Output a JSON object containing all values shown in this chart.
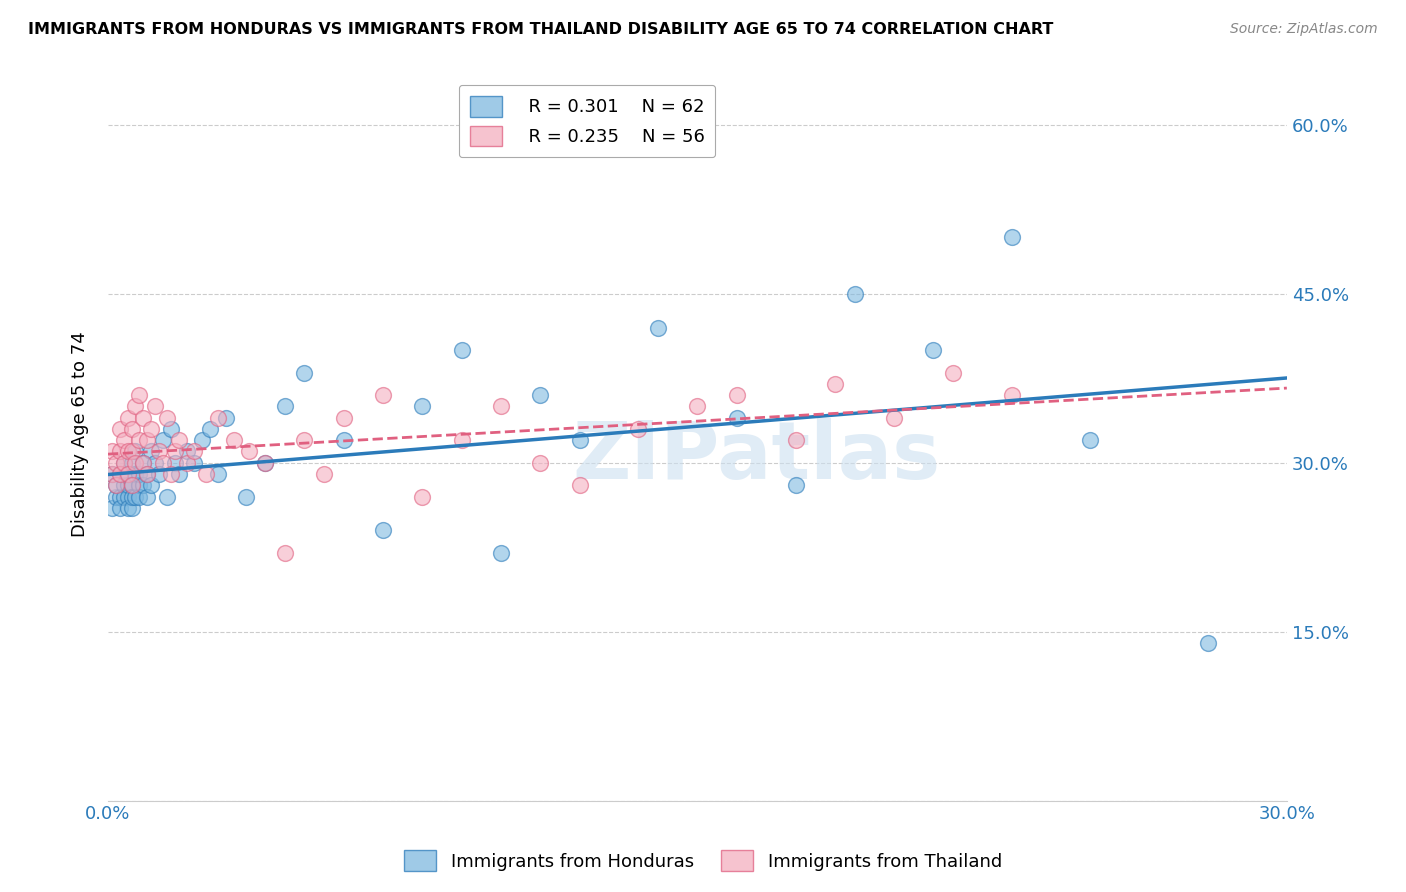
{
  "title": "IMMIGRANTS FROM HONDURAS VS IMMIGRANTS FROM THAILAND DISABILITY AGE 65 TO 74 CORRELATION CHART",
  "source": "Source: ZipAtlas.com",
  "ylabel": "Disability Age 65 to 74",
  "xlim": [
    0.0,
    0.3
  ],
  "ylim": [
    0.0,
    0.65
  ],
  "xticks": [
    0.0,
    0.05,
    0.1,
    0.15,
    0.2,
    0.25,
    0.3
  ],
  "xticklabels": [
    "0.0%",
    "",
    "",
    "",
    "",
    "",
    "30.0%"
  ],
  "yticks": [
    0.0,
    0.15,
    0.3,
    0.45,
    0.6
  ],
  "yticklabels_right": [
    "",
    "15.0%",
    "30.0%",
    "45.0%",
    "60.0%"
  ],
  "grid_color": "#cccccc",
  "blue_color": "#7fb9e0",
  "pink_color": "#f4afc0",
  "trendline_blue": "#2b7bba",
  "trendline_pink": "#e06080",
  "legend_blue_R": "R = 0.301",
  "legend_blue_N": "N = 62",
  "legend_pink_R": "R = 0.235",
  "legend_pink_N": "N = 56",
  "watermark": "ZIPatlas",
  "label_blue": "Immigrants from Honduras",
  "label_pink": "Immigrants from Thailand",
  "honduras_x": [
    0.001,
    0.001,
    0.002,
    0.002,
    0.003,
    0.003,
    0.003,
    0.004,
    0.004,
    0.004,
    0.005,
    0.005,
    0.005,
    0.005,
    0.006,
    0.006,
    0.006,
    0.006,
    0.007,
    0.007,
    0.007,
    0.008,
    0.008,
    0.008,
    0.009,
    0.009,
    0.01,
    0.01,
    0.011,
    0.011,
    0.012,
    0.013,
    0.014,
    0.015,
    0.016,
    0.017,
    0.018,
    0.02,
    0.022,
    0.024,
    0.026,
    0.028,
    0.03,
    0.035,
    0.04,
    0.045,
    0.05,
    0.06,
    0.07,
    0.08,
    0.09,
    0.1,
    0.11,
    0.12,
    0.14,
    0.16,
    0.175,
    0.19,
    0.21,
    0.23,
    0.25,
    0.28
  ],
  "honduras_y": [
    0.26,
    0.29,
    0.27,
    0.28,
    0.27,
    0.29,
    0.26,
    0.28,
    0.3,
    0.27,
    0.29,
    0.27,
    0.26,
    0.28,
    0.28,
    0.26,
    0.3,
    0.27,
    0.29,
    0.27,
    0.31,
    0.28,
    0.29,
    0.27,
    0.3,
    0.28,
    0.27,
    0.29,
    0.31,
    0.28,
    0.3,
    0.29,
    0.32,
    0.27,
    0.33,
    0.3,
    0.29,
    0.31,
    0.3,
    0.32,
    0.33,
    0.29,
    0.34,
    0.27,
    0.3,
    0.35,
    0.38,
    0.32,
    0.24,
    0.35,
    0.4,
    0.22,
    0.36,
    0.32,
    0.42,
    0.34,
    0.28,
    0.45,
    0.4,
    0.5,
    0.32,
    0.14
  ],
  "thailand_x": [
    0.001,
    0.001,
    0.002,
    0.002,
    0.003,
    0.003,
    0.003,
    0.004,
    0.004,
    0.005,
    0.005,
    0.005,
    0.006,
    0.006,
    0.006,
    0.007,
    0.007,
    0.008,
    0.008,
    0.009,
    0.009,
    0.01,
    0.01,
    0.011,
    0.012,
    0.013,
    0.014,
    0.015,
    0.016,
    0.017,
    0.018,
    0.02,
    0.022,
    0.025,
    0.028,
    0.032,
    0.036,
    0.04,
    0.045,
    0.05,
    0.055,
    0.06,
    0.07,
    0.08,
    0.09,
    0.1,
    0.11,
    0.12,
    0.135,
    0.15,
    0.16,
    0.175,
    0.185,
    0.2,
    0.215,
    0.23
  ],
  "thailand_y": [
    0.29,
    0.31,
    0.3,
    0.28,
    0.33,
    0.31,
    0.29,
    0.32,
    0.3,
    0.31,
    0.34,
    0.29,
    0.33,
    0.31,
    0.28,
    0.35,
    0.3,
    0.32,
    0.36,
    0.3,
    0.34,
    0.32,
    0.29,
    0.33,
    0.35,
    0.31,
    0.3,
    0.34,
    0.29,
    0.31,
    0.32,
    0.3,
    0.31,
    0.29,
    0.34,
    0.32,
    0.31,
    0.3,
    0.22,
    0.32,
    0.29,
    0.34,
    0.36,
    0.27,
    0.32,
    0.35,
    0.3,
    0.28,
    0.33,
    0.35,
    0.36,
    0.32,
    0.37,
    0.34,
    0.38,
    0.36
  ]
}
